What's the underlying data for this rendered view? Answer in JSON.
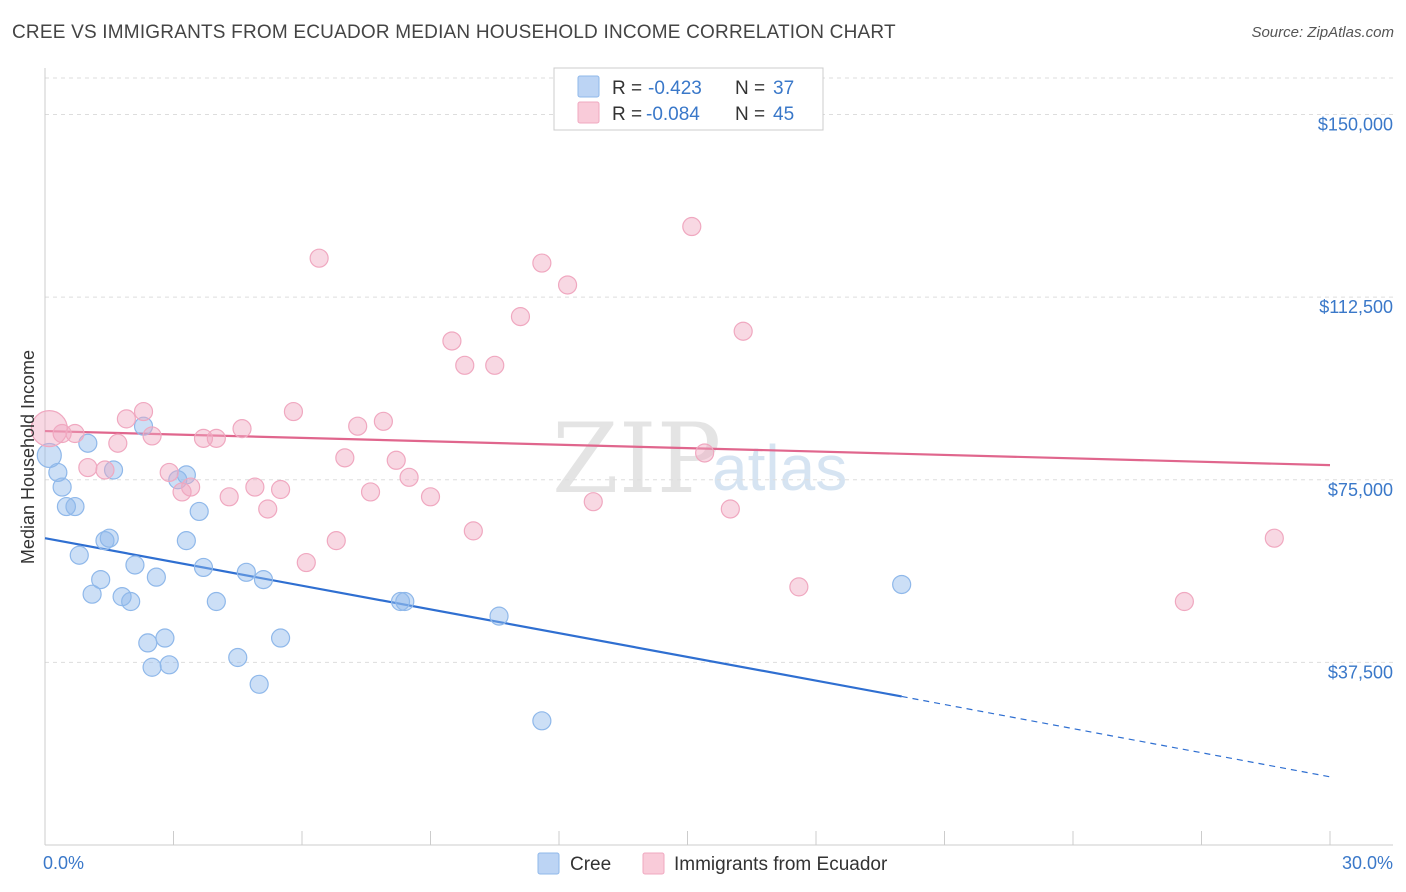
{
  "chart_data": {
    "type": "scatter",
    "title": "CREE VS IMMIGRANTS FROM ECUADOR MEDIAN HOUSEHOLD INCOME CORRELATION CHART",
    "source": "Source: ZipAtlas.com",
    "xlabel": "",
    "ylabel": "Median Household Income",
    "xlim": [
      0,
      30
    ],
    "ylim": [
      0,
      157500
    ],
    "x_tick_labels": [
      "0.0%",
      "30.0%"
    ],
    "x_ticks": [
      0,
      3,
      6,
      9,
      12,
      15,
      18,
      21,
      24,
      27,
      30
    ],
    "y_ticks": [
      {
        "value": 150000,
        "label": "$150,000"
      },
      {
        "value": 112500,
        "label": "$112,500"
      },
      {
        "value": 75000,
        "label": "$75,000"
      },
      {
        "value": 37500,
        "label": "$37,500"
      }
    ],
    "grid": true,
    "legend_position": "top-center",
    "stats": [
      {
        "r_label": "R =",
        "r_value": "-0.423",
        "n_label": "N =",
        "n_value": "37"
      },
      {
        "r_label": "R =",
        "r_value": "-0.084",
        "n_label": "N =",
        "n_value": "45"
      }
    ],
    "watermark": {
      "zip": "ZIP",
      "atlas": "atlas"
    },
    "series": [
      {
        "name": "Cree",
        "color": "#8fb8ea",
        "line_color": "#2f6fd1",
        "trend": {
          "x0": 0,
          "y0": 63000,
          "x1": 20,
          "y1": 30500,
          "x_dash_end": 30,
          "y_dash_end": 14000
        },
        "points": [
          [
            0.1,
            80000,
            12
          ],
          [
            0.3,
            76500,
            9
          ],
          [
            0.4,
            73500,
            9
          ],
          [
            0.5,
            69500,
            9
          ],
          [
            0.7,
            69500,
            9
          ],
          [
            0.8,
            59500,
            9
          ],
          [
            1.0,
            82500,
            9
          ],
          [
            1.1,
            51500,
            9
          ],
          [
            1.3,
            54500,
            9
          ],
          [
            1.4,
            62500,
            9
          ],
          [
            1.5,
            63000,
            9
          ],
          [
            1.6,
            77000,
            9
          ],
          [
            1.8,
            51000,
            9
          ],
          [
            2.0,
            50000,
            9
          ],
          [
            2.1,
            57500,
            9
          ],
          [
            2.3,
            86000,
            9
          ],
          [
            2.4,
            41500,
            9
          ],
          [
            2.5,
            36500,
            9
          ],
          [
            2.6,
            55000,
            9
          ],
          [
            2.8,
            42500,
            9
          ],
          [
            2.9,
            37000,
            9
          ],
          [
            3.1,
            75000,
            9
          ],
          [
            3.3,
            76000,
            9
          ],
          [
            3.3,
            62500,
            9
          ],
          [
            3.6,
            68500,
            9
          ],
          [
            3.7,
            57000,
            9
          ],
          [
            4.0,
            50000,
            9
          ],
          [
            4.5,
            38500,
            9
          ],
          [
            4.7,
            56000,
            9
          ],
          [
            5.0,
            33000,
            9
          ],
          [
            5.1,
            54500,
            9
          ],
          [
            5.5,
            42500,
            9
          ],
          [
            8.3,
            50000,
            9
          ],
          [
            8.4,
            50000,
            9
          ],
          [
            10.6,
            47000,
            9
          ],
          [
            11.6,
            25500,
            9
          ],
          [
            20.0,
            53500,
            9
          ]
        ]
      },
      {
        "name": "Immigrants from Ecuador",
        "color": "#f0a8c0",
        "line_color": "#e0668d",
        "trend": {
          "x0": 0,
          "y0": 85000,
          "x1": 30,
          "y1": 78000
        },
        "points": [
          [
            0.1,
            85500,
            18
          ],
          [
            0.4,
            84500,
            9
          ],
          [
            0.7,
            84500,
            9
          ],
          [
            1.0,
            77500,
            9
          ],
          [
            1.4,
            77000,
            9
          ],
          [
            1.7,
            82500,
            9
          ],
          [
            1.9,
            87500,
            9
          ],
          [
            2.3,
            89000,
            9
          ],
          [
            2.5,
            84000,
            9
          ],
          [
            2.9,
            76500,
            9
          ],
          [
            3.2,
            72500,
            9
          ],
          [
            3.4,
            73500,
            9
          ],
          [
            3.7,
            83500,
            9
          ],
          [
            4.0,
            83500,
            9
          ],
          [
            4.3,
            71500,
            9
          ],
          [
            4.6,
            85500,
            9
          ],
          [
            4.9,
            73500,
            9
          ],
          [
            5.2,
            69000,
            9
          ],
          [
            5.5,
            73000,
            9
          ],
          [
            5.8,
            89000,
            9
          ],
          [
            6.1,
            58000,
            9
          ],
          [
            6.4,
            120500,
            9
          ],
          [
            6.8,
            62500,
            9
          ],
          [
            7.0,
            79500,
            9
          ],
          [
            7.3,
            86000,
            9
          ],
          [
            7.6,
            72500,
            9
          ],
          [
            7.9,
            87000,
            9
          ],
          [
            8.2,
            79000,
            9
          ],
          [
            8.5,
            75500,
            9
          ],
          [
            9.0,
            71500,
            9
          ],
          [
            9.5,
            103500,
            9
          ],
          [
            9.8,
            98500,
            9
          ],
          [
            10.0,
            64500,
            9
          ],
          [
            10.5,
            98500,
            9
          ],
          [
            11.1,
            108500,
            9
          ],
          [
            11.6,
            119500,
            9
          ],
          [
            12.2,
            115000,
            9
          ],
          [
            12.8,
            70500,
            9
          ],
          [
            15.1,
            127000,
            9
          ],
          [
            15.4,
            80500,
            9
          ],
          [
            16.0,
            69000,
            9
          ],
          [
            16.3,
            105500,
            9
          ],
          [
            17.6,
            53000,
            9
          ],
          [
            26.6,
            50000,
            9
          ],
          [
            28.7,
            63000,
            9
          ]
        ]
      }
    ]
  }
}
